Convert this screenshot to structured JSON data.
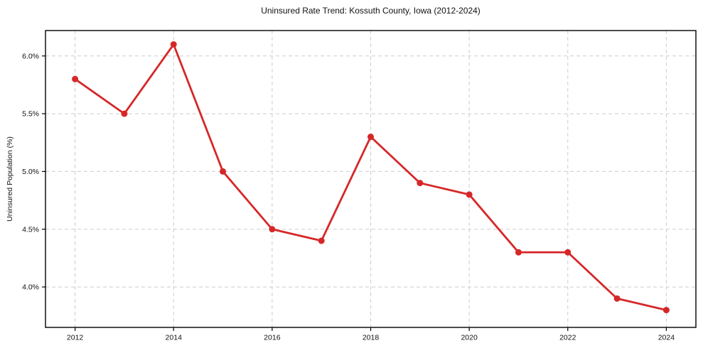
{
  "chart_data": {
    "type": "line",
    "title": "Uninsured Rate Trend: Kossuth County, Iowa (2012-2024)",
    "xlabel": "",
    "ylabel": "Uninsured Population (%)",
    "x": [
      2012,
      2013,
      2014,
      2015,
      2016,
      2017,
      2018,
      2019,
      2020,
      2021,
      2022,
      2023,
      2024
    ],
    "values": [
      5.8,
      5.5,
      6.1,
      5.0,
      4.5,
      4.4,
      5.3,
      4.9,
      4.8,
      4.3,
      4.3,
      3.9,
      3.8
    ],
    "x_ticks": [
      2012,
      2014,
      2016,
      2018,
      2020,
      2022,
      2024
    ],
    "y_ticks": [
      4.0,
      4.5,
      5.0,
      5.5,
      6.0
    ],
    "y_tick_suffix": "%",
    "xlim": [
      2011.4,
      2024.6
    ],
    "ylim": [
      3.65,
      6.22
    ],
    "grid": "dashed",
    "legend": "none",
    "line_color": "#d62728",
    "marker": "circle",
    "marker_radius": 4.5,
    "line_width": 2.8
  }
}
